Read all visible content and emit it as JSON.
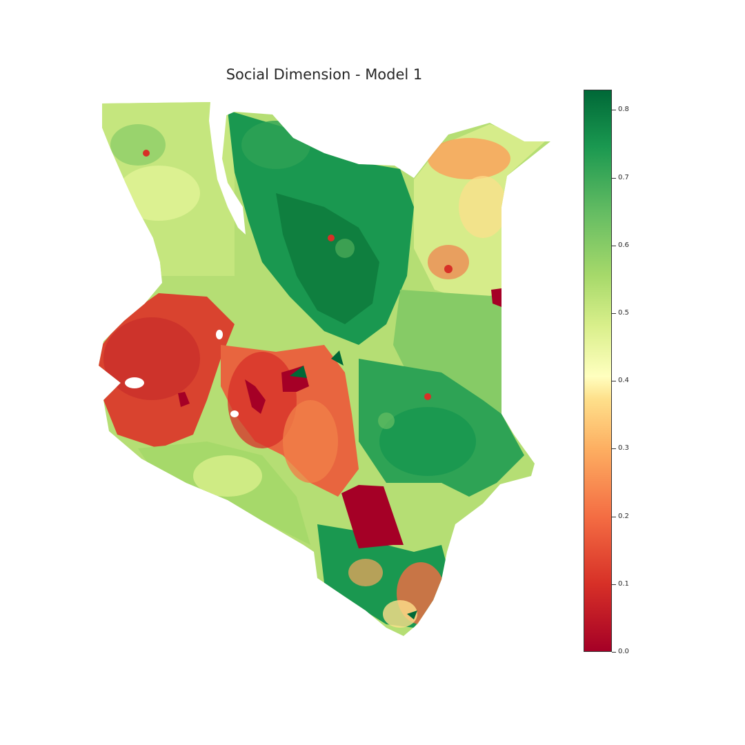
{
  "title": "Social Dimension - Model 1",
  "colorbar": {
    "colormap": "RdYlGn",
    "min": 0.0,
    "max": 0.83,
    "ticks": [
      "0.0",
      "0.1",
      "0.2",
      "0.3",
      "0.4",
      "0.5",
      "0.6",
      "0.7",
      "0.8"
    ],
    "colors": {
      "low": "#a50026",
      "mid": "#ffffbf",
      "high": "#006837"
    }
  },
  "map": {
    "region_icon": "country-outline-kenya",
    "lake_icon": "lake-turkana"
  }
}
